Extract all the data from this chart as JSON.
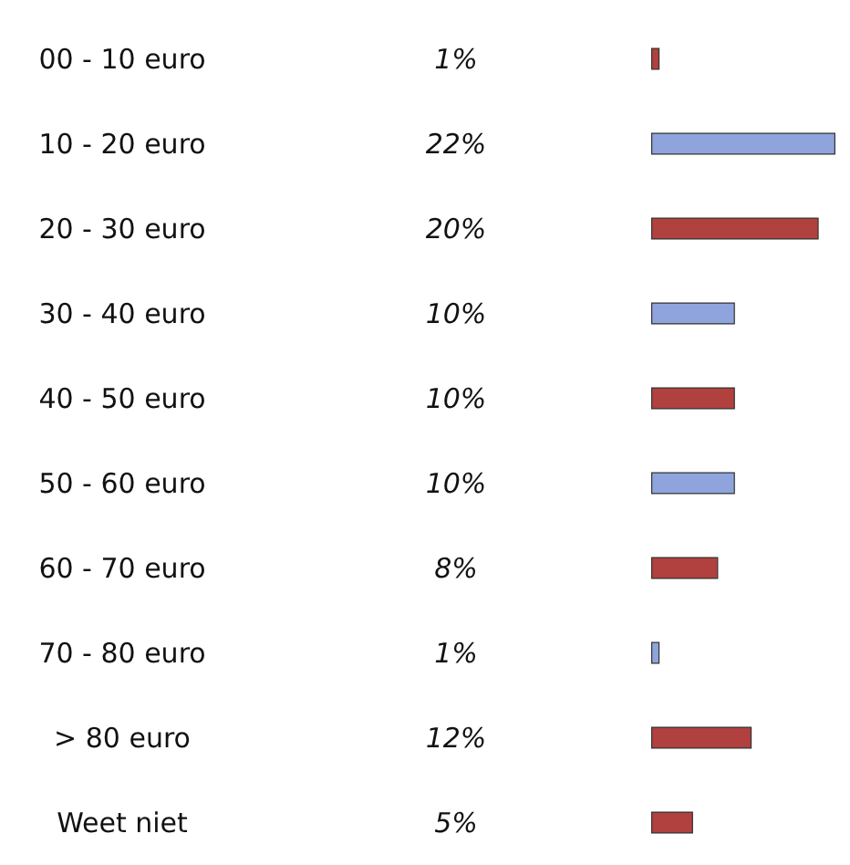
{
  "chart_data": {
    "type": "bar",
    "orientation": "horizontal",
    "categories": [
      "00 - 10 euro",
      "10 - 20 euro",
      "20 - 30 euro",
      "30 - 40 euro",
      "40 - 50 euro",
      "50 - 60 euro",
      "60 - 70 euro",
      "70 - 80 euro",
      "> 80 euro",
      "Weet niet"
    ],
    "values": [
      1,
      22,
      20,
      10,
      10,
      10,
      8,
      1,
      12,
      5
    ],
    "colors": [
      "#b0413e",
      "#8fa4dc",
      "#b0413e",
      "#8fa4dc",
      "#b0413e",
      "#8fa4dc",
      "#b0413e",
      "#8fa4dc",
      "#b0413e",
      "#b0413e"
    ],
    "value_labels": [
      "1%",
      "22%",
      "20%",
      "10%",
      "10%",
      "10%",
      "8%",
      "1%",
      "12%",
      "5%"
    ]
  }
}
